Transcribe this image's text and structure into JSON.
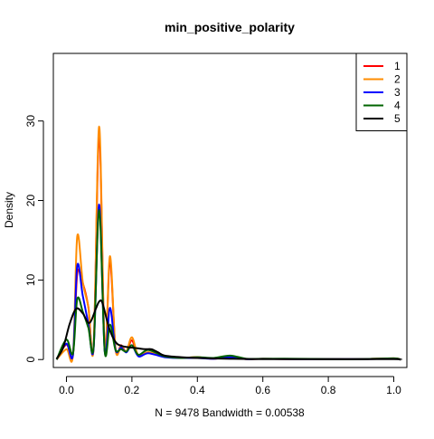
{
  "chart_data": {
    "type": "line",
    "title": "min_positive_polarity",
    "xlabel": "N = 9478   Bandwidth = 0.00538",
    "ylabel": "Density",
    "xlim": [
      -0.04,
      1.04
    ],
    "ylim": [
      -1.0,
      38.5
    ],
    "x_ticks": [
      0.0,
      0.2,
      0.4,
      0.6,
      0.8,
      1.0
    ],
    "x_tick_labels": [
      "0.0",
      "0.2",
      "0.4",
      "0.6",
      "0.8",
      "1.0"
    ],
    "y_ticks": [
      0,
      10,
      20,
      30
    ],
    "y_tick_labels": [
      "0",
      "10",
      "20",
      "30"
    ],
    "grid": false,
    "legend_position": "top-right",
    "series": [
      {
        "name": "1",
        "color": "#ff0000",
        "x": [
          -0.03,
          0.0,
          0.02,
          0.033,
          0.05,
          0.067,
          0.083,
          0.1,
          0.117,
          0.133,
          0.15,
          0.167,
          0.183,
          0.2,
          0.22,
          0.25,
          0.3,
          0.35,
          0.4,
          0.45,
          0.5,
          0.55,
          0.6,
          0.7,
          0.8,
          0.9,
          1.0,
          1.02
        ],
        "y": [
          0,
          1.9,
          0.6,
          10.8,
          9.6,
          6.6,
          1.5,
          28.0,
          1.2,
          12.3,
          1.3,
          1.8,
          1.0,
          2.4,
          0.5,
          0.9,
          0.4,
          0.2,
          0.3,
          0.1,
          0.4,
          0.05,
          0.1,
          0.05,
          0.05,
          0.05,
          0.15,
          0
        ]
      },
      {
        "name": "2",
        "color": "#ff8c00",
        "x": [
          -0.03,
          0.0,
          0.02,
          0.033,
          0.05,
          0.067,
          0.083,
          0.1,
          0.117,
          0.133,
          0.15,
          0.167,
          0.183,
          0.2,
          0.22,
          0.25,
          0.3,
          0.35,
          0.4,
          0.45,
          0.5,
          0.55,
          0.6,
          0.7,
          0.8,
          0.9,
          1.0,
          1.02
        ],
        "y": [
          0,
          1.3,
          0.6,
          15.5,
          9.7,
          6.6,
          1.5,
          29.3,
          1.2,
          13.0,
          1.3,
          1.7,
          1.0,
          2.8,
          0.5,
          0.9,
          0.4,
          0.2,
          0.3,
          0.1,
          0.4,
          0.05,
          0.1,
          0.05,
          0.05,
          0.05,
          0.1,
          0
        ]
      },
      {
        "name": "3",
        "color": "#0000ff",
        "x": [
          -0.03,
          0.0,
          0.02,
          0.033,
          0.05,
          0.067,
          0.083,
          0.1,
          0.117,
          0.133,
          0.15,
          0.167,
          0.183,
          0.2,
          0.22,
          0.25,
          0.3,
          0.35,
          0.4,
          0.45,
          0.5,
          0.55,
          0.6,
          0.7,
          0.8,
          0.9,
          1.0,
          1.02
        ],
        "y": [
          0,
          2.0,
          0.6,
          11.8,
          8.0,
          4.5,
          1.4,
          19.5,
          1.0,
          6.5,
          1.2,
          1.5,
          0.9,
          1.8,
          0.4,
          0.8,
          0.3,
          0.2,
          0.2,
          0.1,
          0.3,
          0.05,
          0.1,
          0.05,
          0.05,
          0.05,
          0.1,
          0
        ]
      },
      {
        "name": "4",
        "color": "#006400",
        "x": [
          -0.03,
          0.0,
          0.02,
          0.033,
          0.05,
          0.067,
          0.083,
          0.1,
          0.117,
          0.133,
          0.15,
          0.167,
          0.183,
          0.2,
          0.22,
          0.25,
          0.3,
          0.35,
          0.4,
          0.45,
          0.5,
          0.55,
          0.6,
          0.7,
          0.8,
          0.9,
          1.0,
          1.02
        ],
        "y": [
          0,
          2.5,
          0.8,
          7.6,
          6.0,
          4.0,
          1.6,
          18.8,
          1.0,
          4.4,
          1.2,
          1.3,
          1.0,
          1.8,
          0.6,
          1.2,
          0.4,
          0.2,
          0.3,
          0.2,
          0.5,
          0.1,
          0.1,
          0.1,
          0.05,
          0.05,
          0.15,
          0
        ]
      },
      {
        "name": "5",
        "color": "#000000",
        "x": [
          -0.03,
          -0.01,
          0.01,
          0.03,
          0.05,
          0.07,
          0.09,
          0.1,
          0.11,
          0.13,
          0.15,
          0.17,
          0.2,
          0.22,
          0.24,
          0.26,
          0.28,
          0.3,
          0.35,
          0.4,
          0.5,
          0.6,
          0.8,
          1.0,
          1.02
        ],
        "y": [
          0.1,
          1.5,
          4.5,
          6.4,
          5.8,
          4.6,
          6.4,
          7.3,
          7.1,
          4.0,
          2.2,
          1.7,
          1.5,
          1.4,
          1.3,
          1.3,
          0.9,
          0.5,
          0.3,
          0.2,
          0.1,
          0.05,
          0.05,
          0.05,
          0
        ]
      }
    ]
  }
}
